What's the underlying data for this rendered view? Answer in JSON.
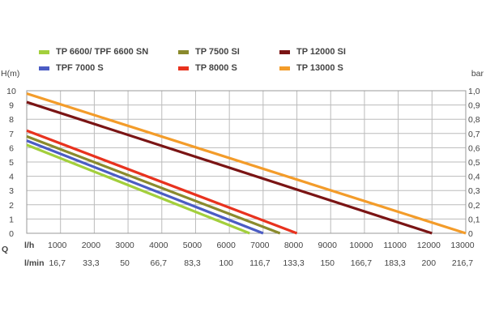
{
  "chart_data": {
    "type": "line",
    "title": "",
    "y_left_label": "H(m)",
    "y_right_label": "bar",
    "x_row1_label": "l/h",
    "x_row2_label": "l/min",
    "x_group_label": "Q",
    "xlim": [
      0,
      13000
    ],
    "ylim": [
      0,
      10
    ],
    "y_right_lim": [
      0,
      1.0
    ],
    "grid": true,
    "legend_position": "top",
    "x_ticks_lh": [
      "1000",
      "2000",
      "3000",
      "4000",
      "5000",
      "6000",
      "7000",
      "8000",
      "9000",
      "10000",
      "11000",
      "12000",
      "13000"
    ],
    "x_ticks_lmin": [
      "16,7",
      "33,3",
      "50",
      "66,7",
      "83,3",
      "100",
      "116,7",
      "133,3",
      "150",
      "166,7",
      "183,3",
      "200",
      "216,7"
    ],
    "y_ticks_left": [
      "0",
      "1",
      "2",
      "3",
      "4",
      "5",
      "6",
      "7",
      "8",
      "9",
      "10"
    ],
    "y_ticks_right": [
      "0",
      "0,1",
      "0,2",
      "0,3",
      "0,4",
      "0,5",
      "0,6",
      "0,7",
      "0,8",
      "0,9",
      "1,0"
    ],
    "series": [
      {
        "name": "TP 6600/ TPF 6600 SN",
        "color": "#a3cf3c",
        "x": [
          0,
          6600
        ],
        "y": [
          6.2,
          0
        ]
      },
      {
        "name": "TPF 7000 S",
        "color": "#4b5cc4",
        "x": [
          0,
          7000
        ],
        "y": [
          6.5,
          0
        ]
      },
      {
        "name": "TP 7500 SI",
        "color": "#8a8a2c",
        "x": [
          0,
          7500
        ],
        "y": [
          6.8,
          0
        ]
      },
      {
        "name": "TP 8000 S",
        "color": "#e8321e",
        "x": [
          0,
          8000
        ],
        "y": [
          7.2,
          0
        ]
      },
      {
        "name": "TP 12000 SI",
        "color": "#7a1414",
        "x": [
          0,
          12000
        ],
        "y": [
          9.2,
          0
        ]
      },
      {
        "name": "TP 13000 S",
        "color": "#f39c2a",
        "x": [
          0,
          13000
        ],
        "y": [
          9.8,
          0
        ]
      }
    ],
    "legend_order": [
      0,
      2,
      4,
      1,
      3,
      5
    ]
  }
}
